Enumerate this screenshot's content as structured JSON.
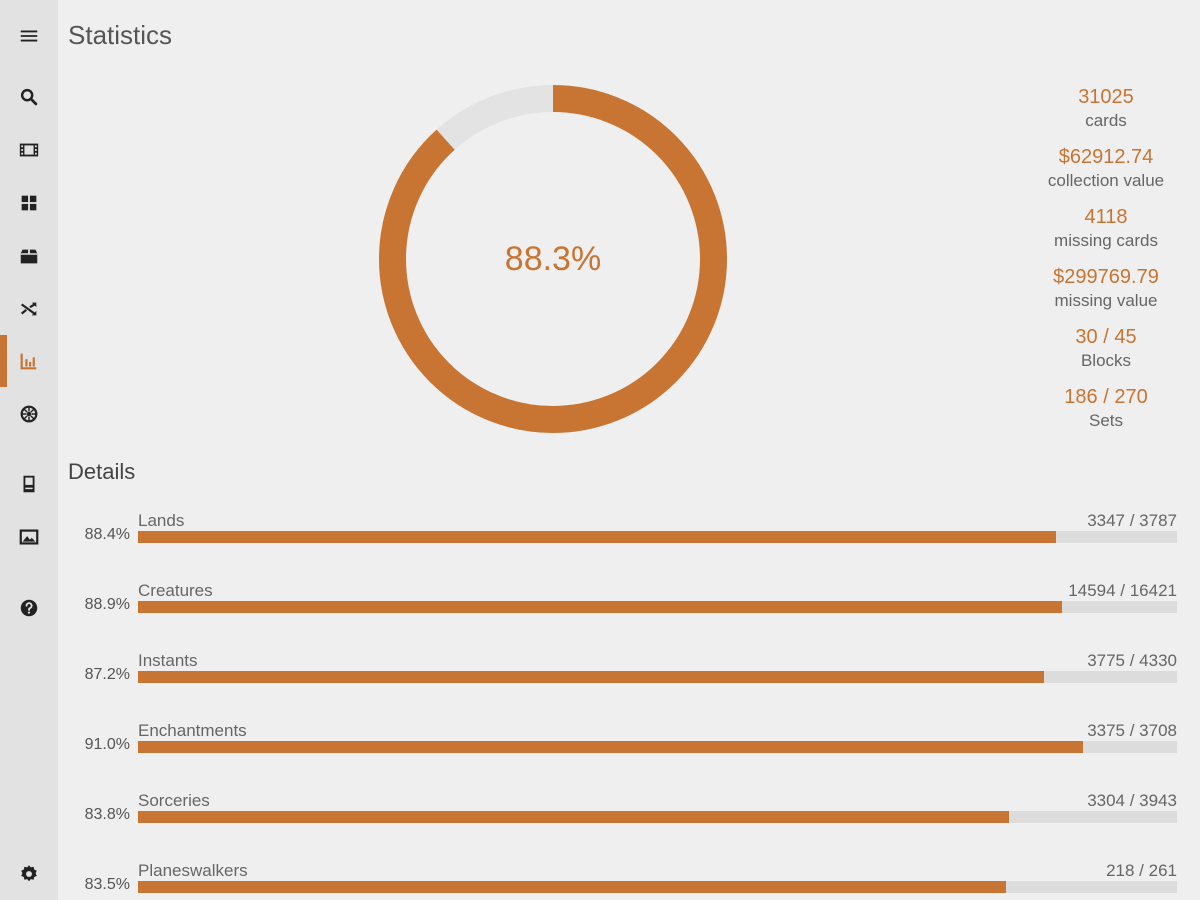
{
  "page": {
    "title": "Statistics"
  },
  "sidebar": {
    "items": [
      {
        "name": "menu-icon"
      },
      {
        "name": "search-icon"
      },
      {
        "name": "film-icon"
      },
      {
        "name": "grid-icon"
      },
      {
        "name": "box-icon"
      },
      {
        "name": "shuffle-icon"
      },
      {
        "name": "chart-icon",
        "active": true
      },
      {
        "name": "aperture-icon"
      },
      {
        "name": "book-icon"
      },
      {
        "name": "image-icon"
      },
      {
        "name": "help-icon"
      },
      {
        "name": "settings-icon"
      }
    ]
  },
  "overview": {
    "percent_label": "88.3%",
    "percent": 88.3,
    "stats": [
      {
        "value": "31025",
        "label": "cards"
      },
      {
        "value": "$62912.74",
        "label": "collection value"
      },
      {
        "value": "4118",
        "label": "missing cards"
      },
      {
        "value": "$299769.79",
        "label": "missing value"
      },
      {
        "value": "30 / 45",
        "label": "Blocks"
      },
      {
        "value": "186 / 270",
        "label": "Sets"
      }
    ]
  },
  "details": {
    "title": "Details",
    "rows": [
      {
        "pct_label": "88.4%",
        "name": "Lands",
        "count": "3347 / 3787",
        "fraction": 0.884
      },
      {
        "pct_label": "88.9%",
        "name": "Creatures",
        "count": "14594 / 16421",
        "fraction": 0.889
      },
      {
        "pct_label": "87.2%",
        "name": "Instants",
        "count": "3775 / 4330",
        "fraction": 0.872
      },
      {
        "pct_label": "91.0%",
        "name": "Enchantments",
        "count": "3375 / 3708",
        "fraction": 0.91
      },
      {
        "pct_label": "83.8%",
        "name": "Sorceries",
        "count": "3304 / 3943",
        "fraction": 0.838
      },
      {
        "pct_label": "83.5%",
        "name": "Planeswalkers",
        "count": "218 / 261",
        "fraction": 0.835
      }
    ]
  },
  "colors": {
    "accent": "#c87533",
    "track": "#dcdcdc",
    "ring_track": "#e3e3e3",
    "icon": "#222222"
  }
}
